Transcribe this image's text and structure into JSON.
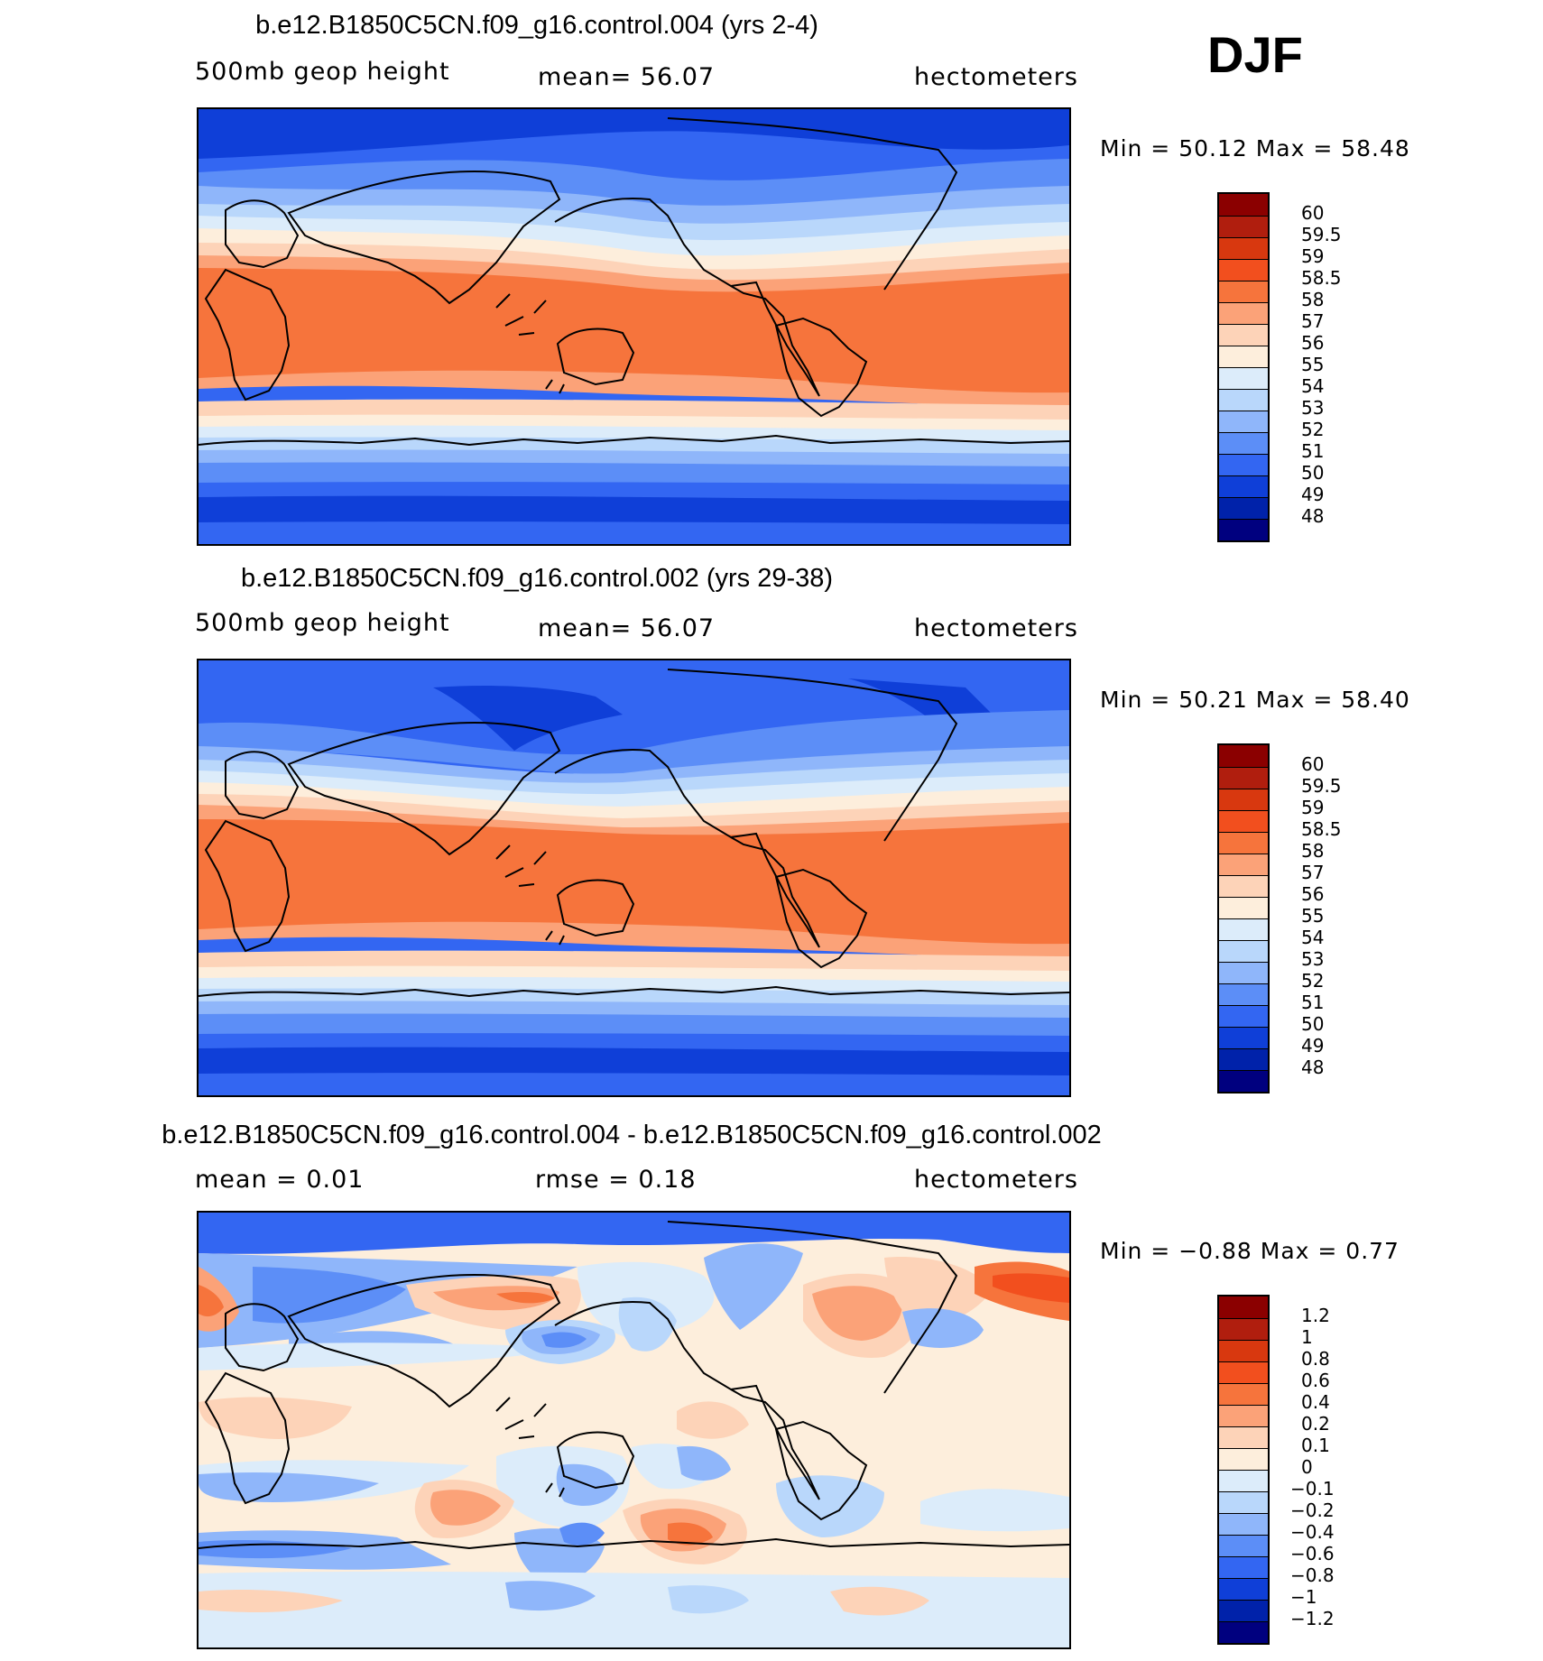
{
  "season": "DJF",
  "panels": [
    {
      "title": "b.e12.B1850C5CN.f09_g16.control.004 (yrs 2-4)",
      "variable": "500mb  geop  height",
      "mean_label": "mean=   56.07",
      "units": "hectometers",
      "min_label": "Min  =    50.12  Max  =    58.48",
      "colorbar": {
        "colors": [
          "#8b0000",
          "#b01e0e",
          "#d8380f",
          "#f24f1e",
          "#f6743c",
          "#fba278",
          "#fdd3b8",
          "#fdeedc",
          "#dcecfa",
          "#b9d7fb",
          "#8fb6fa",
          "#5c8ef7",
          "#3366f2",
          "#0f3fd8",
          "#0022aa",
          "#00007f"
        ],
        "labels": [
          "60",
          "59.5",
          "59",
          "58.5",
          "58",
          "57",
          "56",
          "55",
          "54",
          "53",
          "52",
          "51",
          "50",
          "49",
          "48"
        ]
      }
    },
    {
      "title": "b.e12.B1850C5CN.f09_g16.control.002 (yrs 29-38)",
      "variable": "500mb  geop  height",
      "mean_label": "mean=   56.07",
      "units": "hectometers",
      "min_label": "Min  =    50.21  Max  =    58.40",
      "colorbar": {
        "colors": [
          "#8b0000",
          "#b01e0e",
          "#d8380f",
          "#f24f1e",
          "#f6743c",
          "#fba278",
          "#fdd3b8",
          "#fdeedc",
          "#dcecfa",
          "#b9d7fb",
          "#8fb6fa",
          "#5c8ef7",
          "#3366f2",
          "#0f3fd8",
          "#0022aa",
          "#00007f"
        ],
        "labels": [
          "60",
          "59.5",
          "59",
          "58.5",
          "58",
          "57",
          "56",
          "55",
          "54",
          "53",
          "52",
          "51",
          "50",
          "49",
          "48"
        ]
      }
    },
    {
      "title": "b.e12.B1850C5CN.f09_g16.control.004 - b.e12.B1850C5CN.f09_g16.control.002",
      "variable": "mean  =     0.01",
      "mean_label": "rmse  =     0.18",
      "units": "hectometers",
      "min_label": "Min  =   −0.88  Max  =     0.77",
      "colorbar": {
        "colors": [
          "#8b0000",
          "#b01e0e",
          "#d8380f",
          "#f24f1e",
          "#f6743c",
          "#fba278",
          "#fdd3b8",
          "#fdeedc",
          "#dcecfa",
          "#b9d7fb",
          "#8fb6fa",
          "#5c8ef7",
          "#3366f2",
          "#0f3fd8",
          "#0022aa",
          "#00007f"
        ],
        "labels": [
          "1.2",
          "1",
          "0.8",
          "0.6",
          "0.4",
          "0.2",
          "0.1",
          "0",
          "−0.1",
          "−0.2",
          "−0.4",
          "−0.6",
          "−0.8",
          "−1",
          "−1.2"
        ]
      }
    }
  ]
}
